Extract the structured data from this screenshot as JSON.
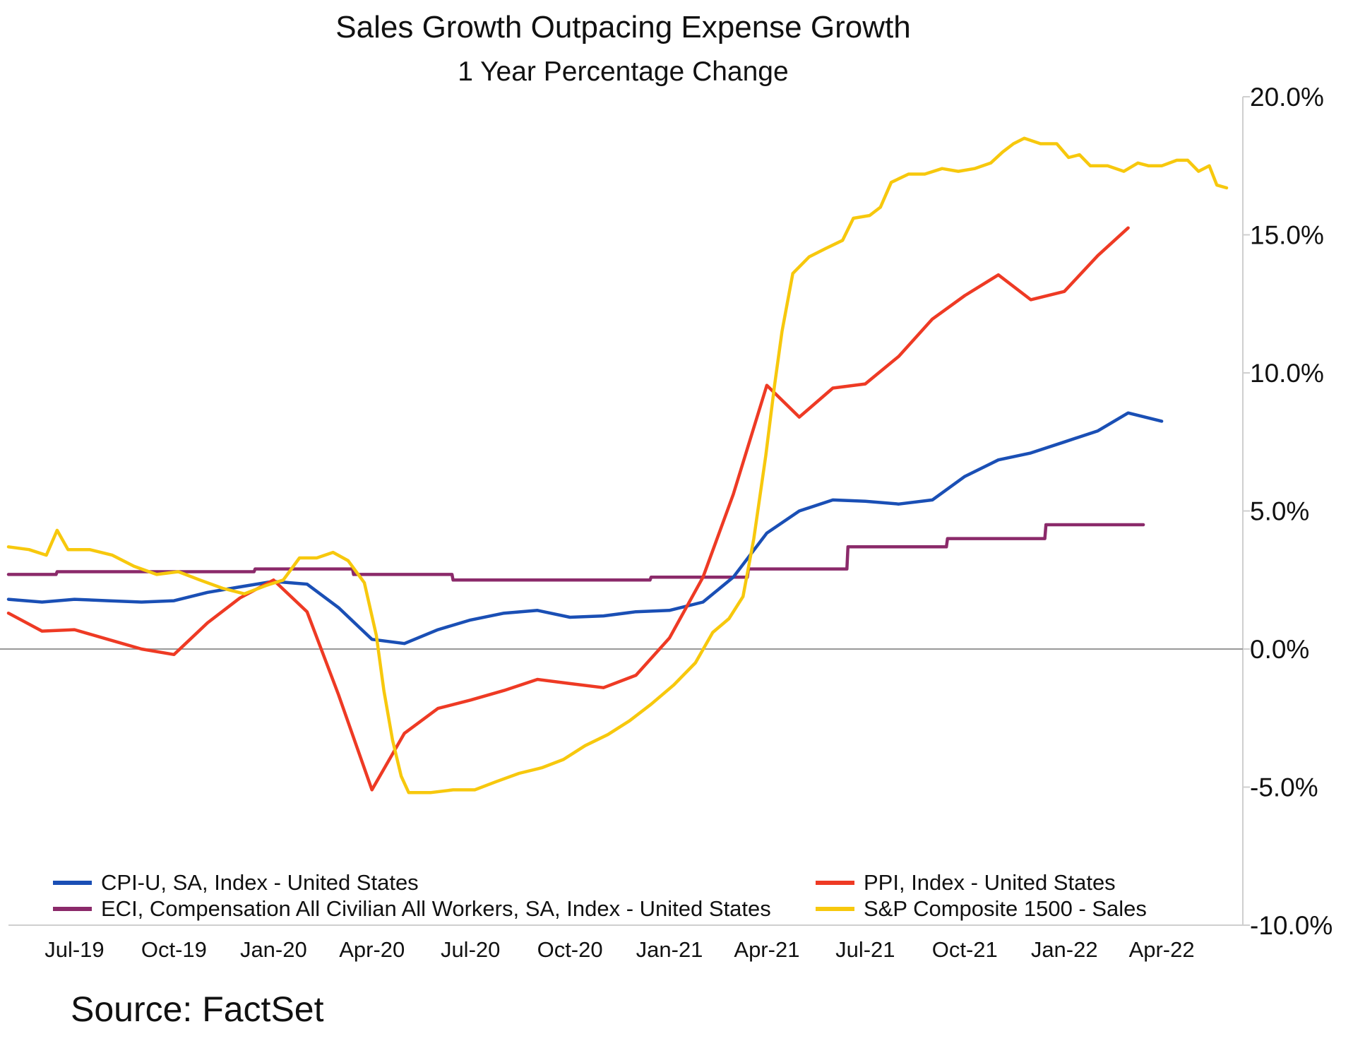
{
  "chart_data": {
    "type": "line",
    "title": "Sales Growth Outpacing Expense Growth",
    "subtitle": "1 Year Percentage Change",
    "source": "Source: FactSet",
    "y_axis": {
      "min": -10,
      "max": 20,
      "position": "right",
      "ticks": [
        -10,
        -5,
        0,
        5,
        10,
        15,
        20
      ],
      "tick_labels": [
        "-10.0%",
        "-5.0%",
        "0.0%",
        "5.0%",
        "10.0%",
        "15.0%",
        "20.0%"
      ]
    },
    "x_axis": {
      "min": "2019-05-01",
      "max": "2022-06-15",
      "ticks": [
        "2019-07-01",
        "2019-10-01",
        "2020-01-01",
        "2020-04-01",
        "2020-07-01",
        "2020-10-01",
        "2021-01-01",
        "2021-04-01",
        "2021-07-01",
        "2021-10-01",
        "2022-01-01",
        "2022-04-01"
      ],
      "tick_labels": [
        "Jul-19",
        "Oct-19",
        "Jan-20",
        "Apr-20",
        "Jul-20",
        "Oct-20",
        "Jan-21",
        "Apr-21",
        "Jul-21",
        "Oct-21",
        "Jan-22",
        "Apr-22"
      ]
    },
    "zero_line": true,
    "grid": false,
    "legend_position": "bottom",
    "series": [
      {
        "name": "CPI-U, SA, Index - United States",
        "color": "#1a4fb5",
        "points": [
          [
            "2019-05-01",
            1.8
          ],
          [
            "2019-06-01",
            1.7
          ],
          [
            "2019-07-01",
            1.8
          ],
          [
            "2019-08-01",
            1.75
          ],
          [
            "2019-09-01",
            1.7
          ],
          [
            "2019-10-01",
            1.75
          ],
          [
            "2019-11-01",
            2.05
          ],
          [
            "2019-12-01",
            2.25
          ],
          [
            "2020-01-01",
            2.45
          ],
          [
            "2020-02-01",
            2.35
          ],
          [
            "2020-03-01",
            1.5
          ],
          [
            "2020-04-01",
            0.35
          ],
          [
            "2020-05-01",
            0.2
          ],
          [
            "2020-06-01",
            0.7
          ],
          [
            "2020-07-01",
            1.05
          ],
          [
            "2020-08-01",
            1.3
          ],
          [
            "2020-09-01",
            1.4
          ],
          [
            "2020-10-01",
            1.15
          ],
          [
            "2020-11-01",
            1.2
          ],
          [
            "2020-12-01",
            1.35
          ],
          [
            "2021-01-01",
            1.4
          ],
          [
            "2021-02-01",
            1.7
          ],
          [
            "2021-03-01",
            2.6
          ],
          [
            "2021-04-01",
            4.2
          ],
          [
            "2021-05-01",
            5.0
          ],
          [
            "2021-06-01",
            5.4
          ],
          [
            "2021-07-01",
            5.35
          ],
          [
            "2021-08-01",
            5.25
          ],
          [
            "2021-09-01",
            5.4
          ],
          [
            "2021-10-01",
            6.25
          ],
          [
            "2021-11-01",
            6.85
          ],
          [
            "2021-12-01",
            7.1
          ],
          [
            "2022-01-01",
            7.5
          ],
          [
            "2022-02-01",
            7.9
          ],
          [
            "2022-03-01",
            8.55
          ],
          [
            "2022-04-01",
            8.25
          ]
        ]
      },
      {
        "name": "PPI, Index - United States",
        "color": "#ee3a24",
        "points": [
          [
            "2019-05-01",
            1.3
          ],
          [
            "2019-06-01",
            0.65
          ],
          [
            "2019-07-01",
            0.7
          ],
          [
            "2019-08-01",
            0.35
          ],
          [
            "2019-09-01",
            0.0
          ],
          [
            "2019-10-01",
            -0.2
          ],
          [
            "2019-11-01",
            0.95
          ],
          [
            "2019-12-01",
            1.85
          ],
          [
            "2020-01-01",
            2.5
          ],
          [
            "2020-02-01",
            1.35
          ],
          [
            "2020-03-01",
            -1.65
          ],
          [
            "2020-04-01",
            -5.1
          ],
          [
            "2020-05-01",
            -3.05
          ],
          [
            "2020-06-01",
            -2.15
          ],
          [
            "2020-07-01",
            -1.85
          ],
          [
            "2020-08-01",
            -1.5
          ],
          [
            "2020-09-01",
            -1.1
          ],
          [
            "2020-10-01",
            -1.25
          ],
          [
            "2020-11-01",
            -1.4
          ],
          [
            "2020-12-01",
            -0.95
          ],
          [
            "2021-01-01",
            0.4
          ],
          [
            "2021-02-01",
            2.6
          ],
          [
            "2021-03-01",
            5.6
          ],
          [
            "2021-04-01",
            9.55
          ],
          [
            "2021-05-01",
            8.4
          ],
          [
            "2021-06-01",
            9.45
          ],
          [
            "2021-07-01",
            9.6
          ],
          [
            "2021-08-01",
            10.6
          ],
          [
            "2021-09-01",
            11.95
          ],
          [
            "2021-10-01",
            12.8
          ],
          [
            "2021-11-01",
            13.55
          ],
          [
            "2021-12-01",
            12.65
          ],
          [
            "2022-01-01",
            12.95
          ],
          [
            "2022-02-01",
            14.25
          ],
          [
            "2022-03-01",
            15.25
          ]
        ]
      },
      {
        "name": "ECI, Compensation All Civilian All Workers, SA, Index - United States",
        "color": "#8b2a6a",
        "points": [
          [
            "2019-05-01",
            2.7
          ],
          [
            "2019-06-14",
            2.7
          ],
          [
            "2019-06-15",
            2.8
          ],
          [
            "2019-09-14",
            2.8
          ],
          [
            "2019-09-15",
            2.8
          ],
          [
            "2019-12-14",
            2.8
          ],
          [
            "2019-12-15",
            2.9
          ],
          [
            "2020-03-14",
            2.9
          ],
          [
            "2020-03-15",
            2.7
          ],
          [
            "2020-06-14",
            2.7
          ],
          [
            "2020-06-15",
            2.5
          ],
          [
            "2020-09-14",
            2.5
          ],
          [
            "2020-09-15",
            2.5
          ],
          [
            "2020-12-14",
            2.5
          ],
          [
            "2020-12-15",
            2.6
          ],
          [
            "2021-03-14",
            2.6
          ],
          [
            "2021-03-15",
            2.9
          ],
          [
            "2021-06-14",
            2.9
          ],
          [
            "2021-06-15",
            3.7
          ],
          [
            "2021-09-14",
            3.7
          ],
          [
            "2021-09-15",
            4.0
          ],
          [
            "2021-12-14",
            4.0
          ],
          [
            "2021-12-15",
            4.5
          ],
          [
            "2022-03-15",
            4.5
          ]
        ]
      },
      {
        "name": "S&P Composite 1500 - Sales",
        "color": "#f7c80d",
        "points": [
          [
            "2019-05-01",
            3.7
          ],
          [
            "2019-05-20",
            3.6
          ],
          [
            "2019-06-05",
            3.4
          ],
          [
            "2019-06-15",
            4.3
          ],
          [
            "2019-06-25",
            3.6
          ],
          [
            "2019-07-15",
            3.6
          ],
          [
            "2019-08-05",
            3.4
          ],
          [
            "2019-08-25",
            3.0
          ],
          [
            "2019-09-15",
            2.7
          ],
          [
            "2019-10-05",
            2.8
          ],
          [
            "2019-10-25",
            2.5
          ],
          [
            "2019-11-15",
            2.2
          ],
          [
            "2019-12-05",
            2.0
          ],
          [
            "2019-12-25",
            2.3
          ],
          [
            "2020-01-10",
            2.5
          ],
          [
            "2020-01-25",
            3.3
          ],
          [
            "2020-02-10",
            3.3
          ],
          [
            "2020-02-25",
            3.5
          ],
          [
            "2020-03-10",
            3.2
          ],
          [
            "2020-03-25",
            2.4
          ],
          [
            "2020-04-05",
            0.5
          ],
          [
            "2020-04-12",
            -1.5
          ],
          [
            "2020-04-20",
            -3.3
          ],
          [
            "2020-04-28",
            -4.6
          ],
          [
            "2020-05-05",
            -5.2
          ],
          [
            "2020-05-25",
            -5.2
          ],
          [
            "2020-06-15",
            -5.1
          ],
          [
            "2020-07-05",
            -5.1
          ],
          [
            "2020-07-25",
            -4.8
          ],
          [
            "2020-08-15",
            -4.5
          ],
          [
            "2020-09-05",
            -4.3
          ],
          [
            "2020-09-25",
            -4.0
          ],
          [
            "2020-10-15",
            -3.5
          ],
          [
            "2020-11-05",
            -3.1
          ],
          [
            "2020-11-25",
            -2.6
          ],
          [
            "2020-12-15",
            -2.0
          ],
          [
            "2021-01-05",
            -1.3
          ],
          [
            "2021-01-25",
            -0.5
          ],
          [
            "2021-02-10",
            0.6
          ],
          [
            "2021-02-25",
            1.1
          ],
          [
            "2021-03-10",
            1.9
          ],
          [
            "2021-03-20",
            4.0
          ],
          [
            "2021-03-31",
            7.0
          ],
          [
            "2021-04-08",
            9.5
          ],
          [
            "2021-04-15",
            11.5
          ],
          [
            "2021-04-25",
            13.6
          ],
          [
            "2021-05-10",
            14.2
          ],
          [
            "2021-05-25",
            14.5
          ],
          [
            "2021-06-10",
            14.8
          ],
          [
            "2021-06-20",
            15.6
          ],
          [
            "2021-07-05",
            15.7
          ],
          [
            "2021-07-15",
            16.0
          ],
          [
            "2021-07-25",
            16.9
          ],
          [
            "2021-08-10",
            17.2
          ],
          [
            "2021-08-25",
            17.2
          ],
          [
            "2021-09-10",
            17.4
          ],
          [
            "2021-09-25",
            17.3
          ],
          [
            "2021-10-10",
            17.4
          ],
          [
            "2021-10-25",
            17.6
          ],
          [
            "2021-11-05",
            18.0
          ],
          [
            "2021-11-15",
            18.3
          ],
          [
            "2021-11-25",
            18.5
          ],
          [
            "2021-12-10",
            18.3
          ],
          [
            "2021-12-25",
            18.3
          ],
          [
            "2022-01-05",
            17.8
          ],
          [
            "2022-01-15",
            17.9
          ],
          [
            "2022-01-25",
            17.5
          ],
          [
            "2022-02-10",
            17.5
          ],
          [
            "2022-02-25",
            17.3
          ],
          [
            "2022-03-10",
            17.6
          ],
          [
            "2022-03-20",
            17.5
          ],
          [
            "2022-04-01",
            17.5
          ],
          [
            "2022-04-15",
            17.7
          ],
          [
            "2022-04-25",
            17.7
          ],
          [
            "2022-05-05",
            17.3
          ],
          [
            "2022-05-15",
            17.5
          ],
          [
            "2022-05-22",
            16.8
          ],
          [
            "2022-05-31",
            16.7
          ]
        ]
      }
    ]
  }
}
